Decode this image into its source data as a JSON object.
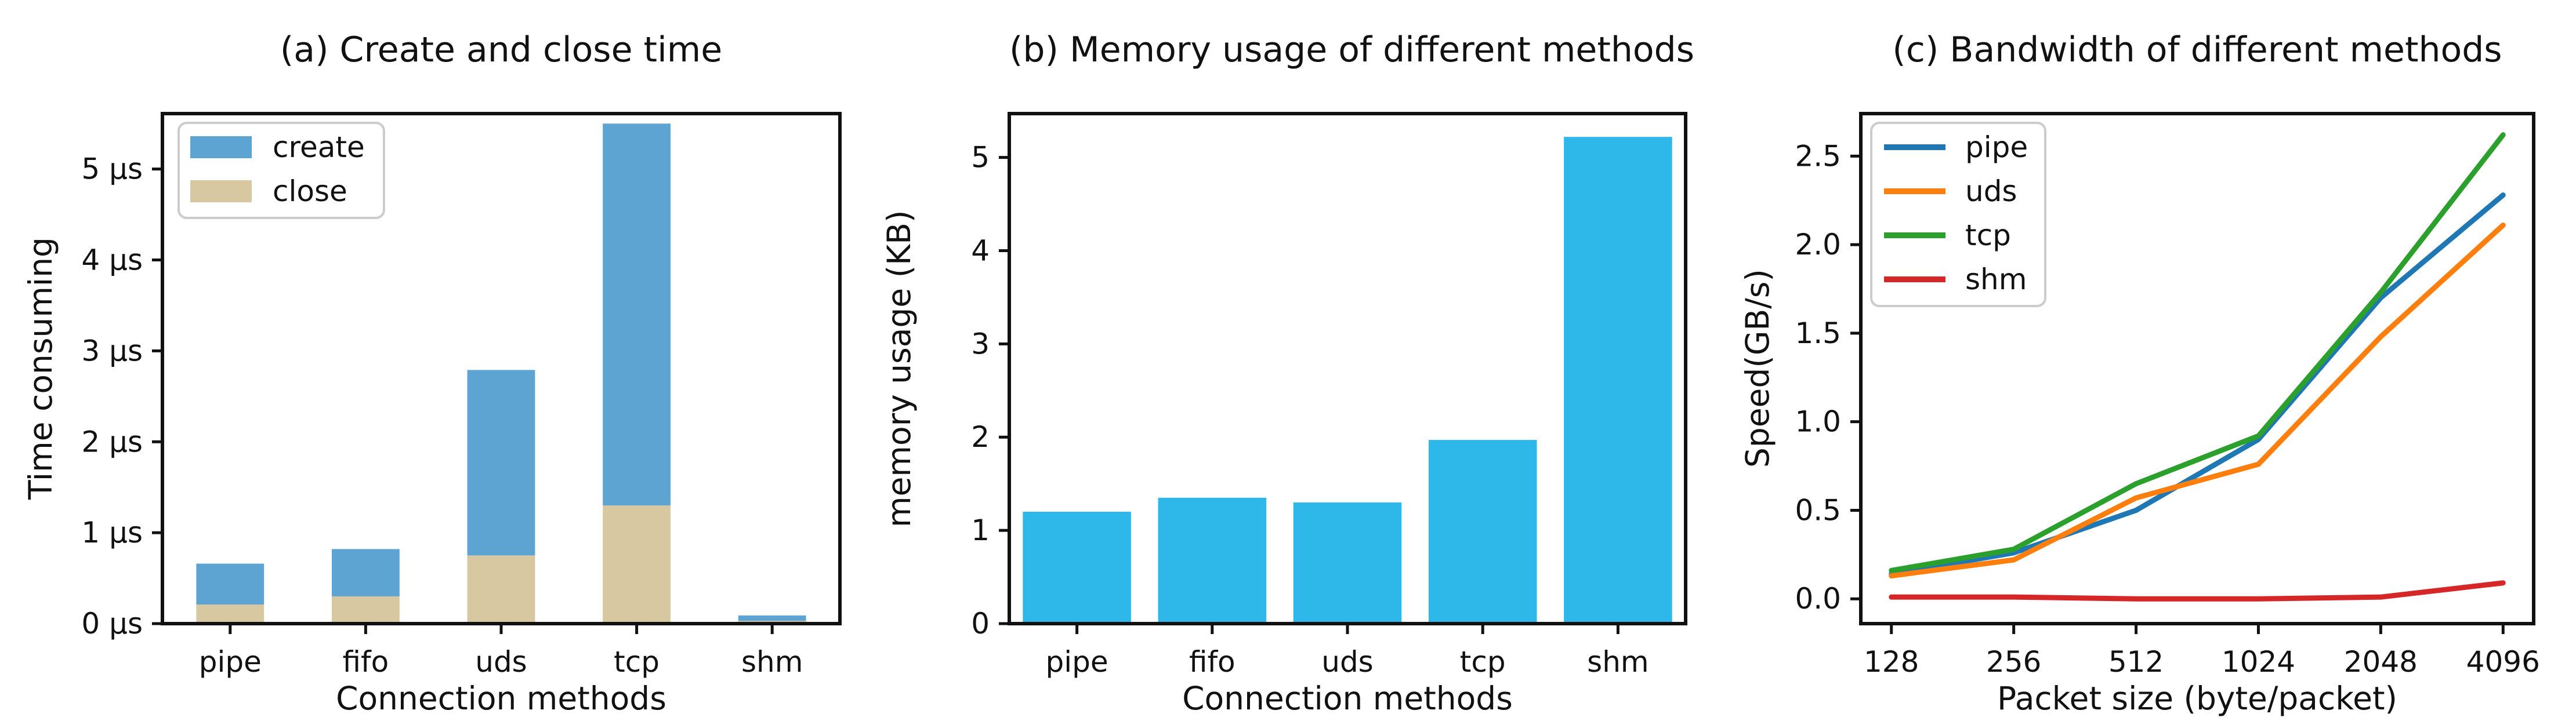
{
  "figure": {
    "background": "#ffffff",
    "text_color": "#111111",
    "spine_color": "#111111",
    "legend_border_color": "#cccccc",
    "legend_background": "#ffffff"
  },
  "chart_data": [
    {
      "id": "a",
      "type": "bar",
      "stacked": true,
      "title": "(a) Create and close time",
      "xlabel": "Connection methods",
      "ylabel": "Time consuming",
      "categories": [
        "pipe",
        "fifo",
        "uds",
        "tcp",
        "shm"
      ],
      "series": [
        {
          "name": "close",
          "color": "#d8c8a2",
          "values": [
            0.21,
            0.3,
            0.75,
            1.3,
            0.03
          ]
        },
        {
          "name": "create",
          "color": "#5da4d2",
          "values": [
            0.45,
            0.52,
            2.04,
            4.2,
            0.06
          ]
        }
      ],
      "totals": [
        0.66,
        0.82,
        2.79,
        5.5,
        0.09
      ],
      "ylim": [
        0,
        5.61
      ],
      "yticks": [
        {
          "v": 0,
          "label": "0 µs"
        },
        {
          "v": 1,
          "label": "1 µs"
        },
        {
          "v": 2,
          "label": "2 µs"
        },
        {
          "v": 3,
          "label": "3 µs"
        },
        {
          "v": 4,
          "label": "4 µs"
        },
        {
          "v": 5,
          "label": "5 µs"
        }
      ],
      "bar_width_frac": 0.5,
      "legend": {
        "position": "upper-left",
        "swatch": "patch",
        "entries": [
          {
            "label": "create",
            "color": "#5da4d2"
          },
          {
            "label": "close",
            "color": "#d8c8a2"
          }
        ]
      }
    },
    {
      "id": "b",
      "type": "bar",
      "stacked": false,
      "title": "(b) Memory usage of different methods",
      "xlabel": "Connection methods",
      "ylabel": "memory usage (KB)",
      "categories": [
        "pipe",
        "fifo",
        "uds",
        "tcp",
        "shm"
      ],
      "color": "#2eb8ea",
      "values": [
        1.2,
        1.35,
        1.3,
        1.97,
        5.22
      ],
      "ylim": [
        0,
        5.47
      ],
      "yticks": [
        {
          "v": 0,
          "label": "0"
        },
        {
          "v": 1,
          "label": "1"
        },
        {
          "v": 2,
          "label": "2"
        },
        {
          "v": 3,
          "label": "3"
        },
        {
          "v": 4,
          "label": "4"
        },
        {
          "v": 5,
          "label": "5"
        }
      ],
      "bar_width_frac": 0.8
    },
    {
      "id": "c",
      "type": "line",
      "title": "(c) Bandwidth of different methods",
      "xlabel": "Packet size (byte/packet)",
      "ylabel": "Speed(GB/s)",
      "categories": [
        "128",
        "256",
        "512",
        "1024",
        "2048",
        "4096"
      ],
      "series": [
        {
          "name": "pipe",
          "color": "#1f77b4",
          "values": [
            0.14,
            0.26,
            0.5,
            0.9,
            1.7,
            2.28
          ]
        },
        {
          "name": "uds",
          "color": "#ff7f0e",
          "values": [
            0.13,
            0.22,
            0.57,
            0.76,
            1.48,
            2.11
          ]
        },
        {
          "name": "tcp",
          "color": "#2ca02c",
          "values": [
            0.16,
            0.28,
            0.65,
            0.92,
            1.73,
            2.62
          ]
        },
        {
          "name": "shm",
          "color": "#d62728",
          "values": [
            0.01,
            0.01,
            0.0,
            0.0,
            0.01,
            0.09
          ]
        }
      ],
      "ylim": [
        -0.14,
        2.74
      ],
      "yticks": [
        {
          "v": 0.0,
          "label": "0.0"
        },
        {
          "v": 0.5,
          "label": "0.5"
        },
        {
          "v": 1.0,
          "label": "1.0"
        },
        {
          "v": 1.5,
          "label": "1.5"
        },
        {
          "v": 2.0,
          "label": "2.0"
        },
        {
          "v": 2.5,
          "label": "2.5"
        }
      ],
      "legend": {
        "position": "upper-left",
        "swatch": "line",
        "entries": [
          {
            "label": "pipe",
            "color": "#1f77b4"
          },
          {
            "label": "uds",
            "color": "#ff7f0e"
          },
          {
            "label": "tcp",
            "color": "#2ca02c"
          },
          {
            "label": "shm",
            "color": "#d62728"
          }
        ]
      }
    }
  ]
}
